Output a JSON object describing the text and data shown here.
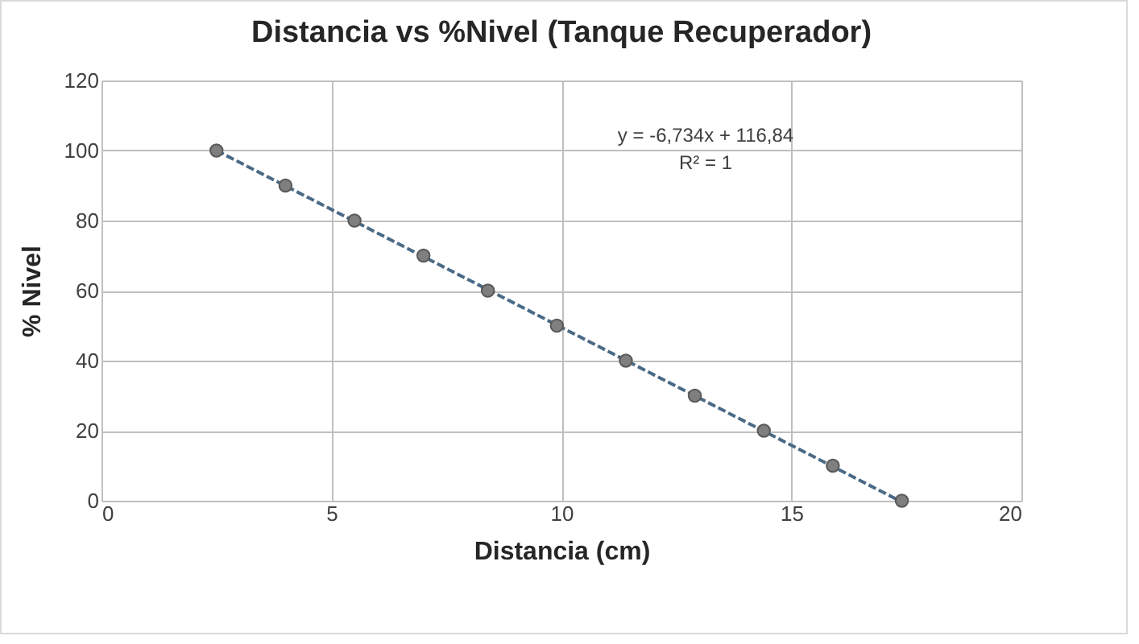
{
  "chart_data": {
    "type": "scatter",
    "title": "Distancia vs %Nivel (Tanque Recuperador)",
    "xlabel": "Distancia (cm)",
    "ylabel": "% Nivel",
    "xlim": [
      0,
      20
    ],
    "xticks": [
      0,
      5,
      10,
      15,
      20
    ],
    "ylim": [
      0,
      120
    ],
    "yticks": [
      0,
      20,
      40,
      60,
      80,
      100,
      120
    ],
    "grid": true,
    "series": [
      {
        "color": "#7f7f7f",
        "marker": "circle",
        "x": [
          2.5,
          4,
          5.5,
          7,
          8.4,
          9.9,
          11.4,
          12.9,
          14.4,
          15.9,
          17.4
        ],
        "values": [
          100,
          90,
          80,
          70,
          60,
          50,
          40,
          30,
          20,
          10,
          0
        ]
      },
      {
        "type": "line",
        "color": "#4a6a86",
        "line_style": "dashed",
        "x": [
          2.5,
          17.35
        ],
        "values": [
          100,
          0
        ]
      }
    ],
    "annotations": [
      "y = -6,734x + 116,84",
      "R² = 1"
    ]
  }
}
